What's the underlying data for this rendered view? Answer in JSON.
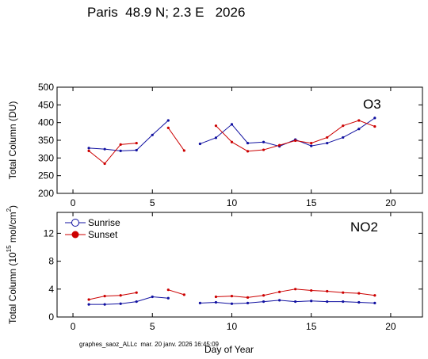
{
  "title": "Paris  48.9 N; 2.3 E   2026",
  "footer": "graphes_saoz_ALLc  mar. 20 janv. 2026 16:45:09",
  "xlabel": "Day of Year",
  "colors": {
    "sunrise": "#1010a0",
    "sunset": "#cc0000",
    "axis": "#000000"
  },
  "chart_data": [
    {
      "type": "line",
      "title": "O3",
      "ylabel": "Total Column  (DU)",
      "xlim": [
        -1,
        22
      ],
      "ylim": [
        200,
        500
      ],
      "xticks": [
        0,
        5,
        10,
        15,
        20
      ],
      "yticks": [
        200,
        250,
        300,
        350,
        400,
        450,
        500
      ],
      "series": [
        {
          "name": "Sunrise",
          "segments": [
            [
              [
                1,
                328
              ],
              [
                2,
                325
              ],
              [
                3,
                320
              ],
              [
                4,
                322
              ],
              [
                5,
                365
              ],
              [
                6,
                406
              ]
            ],
            [
              [
                8,
                340
              ],
              [
                9,
                357
              ],
              [
                10,
                395
              ],
              [
                11,
                342
              ],
              [
                12,
                345
              ],
              [
                13,
                333
              ],
              [
                14,
                352
              ],
              [
                15,
                334
              ],
              [
                16,
                342
              ],
              [
                17,
                358
              ],
              [
                18,
                382
              ],
              [
                19,
                413
              ]
            ]
          ]
        },
        {
          "name": "Sunset",
          "segments": [
            [
              [
                1,
                320
              ],
              [
                2,
                284
              ],
              [
                3,
                338
              ],
              [
                4,
                342
              ]
            ],
            [
              [
                6,
                385
              ],
              [
                7,
                321
              ]
            ],
            [
              [
                9,
                391
              ],
              [
                10,
                345
              ],
              [
                11,
                319
              ],
              [
                12,
                323
              ],
              [
                13,
                336
              ],
              [
                14,
                349
              ],
              [
                15,
                342
              ],
              [
                16,
                358
              ],
              [
                17,
                391
              ],
              [
                18,
                406
              ],
              [
                19,
                389
              ]
            ]
          ]
        }
      ]
    },
    {
      "type": "line",
      "title": "NO2",
      "ylabel": "Total Column (10",
      "ylabel_sup": "15",
      "ylabel_tail": " mol/cm",
      "ylabel_sup2": "2",
      "ylabel_end": ")",
      "xlim": [
        -1,
        22
      ],
      "ylim": [
        0,
        15
      ],
      "xticks": [
        0,
        5,
        10,
        15,
        20
      ],
      "yticks": [
        0,
        4,
        8,
        12
      ],
      "legend": [
        "Sunrise",
        "Sunset"
      ],
      "series": [
        {
          "name": "Sunrise",
          "segments": [
            [
              [
                1,
                1.8
              ],
              [
                2,
                1.8
              ],
              [
                3,
                1.9
              ],
              [
                4,
                2.2
              ],
              [
                5,
                2.9
              ],
              [
                6,
                2.7
              ]
            ],
            [
              [
                8,
                2.0
              ],
              [
                9,
                2.1
              ],
              [
                10,
                1.9
              ],
              [
                11,
                2.0
              ],
              [
                12,
                2.2
              ],
              [
                13,
                2.4
              ],
              [
                14,
                2.2
              ],
              [
                15,
                2.3
              ],
              [
                16,
                2.2
              ],
              [
                17,
                2.2
              ],
              [
                18,
                2.1
              ],
              [
                19,
                2.0
              ]
            ]
          ]
        },
        {
          "name": "Sunset",
          "segments": [
            [
              [
                1,
                2.5
              ],
              [
                2,
                3.0
              ],
              [
                3,
                3.1
              ],
              [
                4,
                3.5
              ]
            ],
            [
              [
                6,
                3.9
              ],
              [
                7,
                3.2
              ]
            ],
            [
              [
                9,
                2.9
              ],
              [
                10,
                3.0
              ],
              [
                11,
                2.8
              ],
              [
                12,
                3.1
              ],
              [
                13,
                3.6
              ],
              [
                14,
                4.0
              ],
              [
                15,
                3.8
              ],
              [
                16,
                3.7
              ],
              [
                17,
                3.5
              ],
              [
                18,
                3.4
              ],
              [
                19,
                3.1
              ]
            ]
          ]
        }
      ]
    }
  ]
}
